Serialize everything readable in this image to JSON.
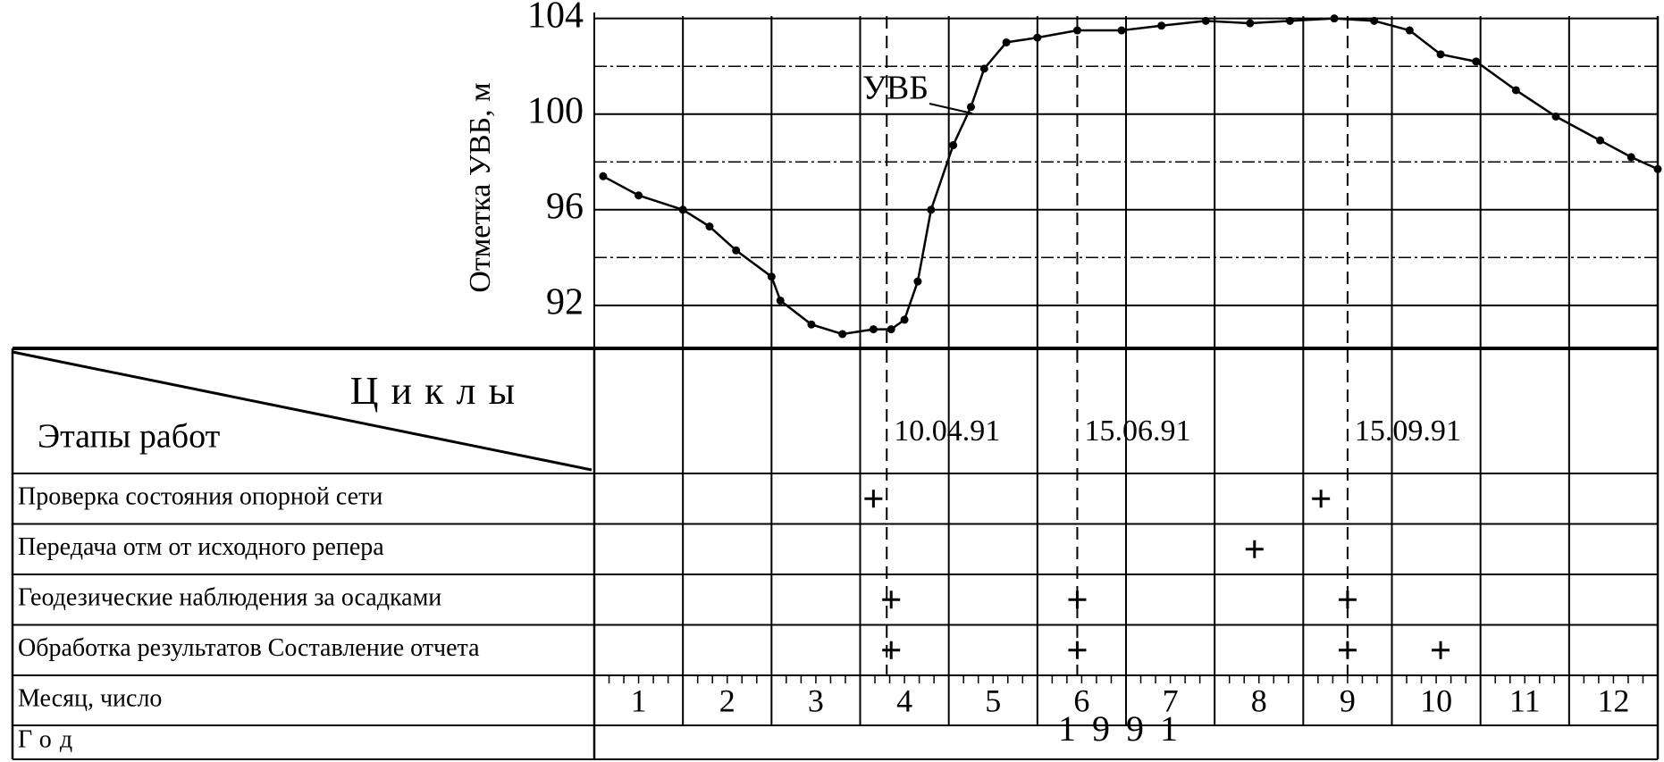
{
  "chart_data": {
    "type": "line",
    "y_label": "Отметка УВБ, м",
    "series": [
      {
        "name": "УВБ",
        "color": "#000000",
        "x": [
          0.1,
          0.5,
          1.0,
          1.3,
          1.6,
          2.0,
          2.1,
          2.45,
          2.8,
          3.15,
          3.35,
          3.5,
          3.65,
          3.8,
          4.05,
          4.25,
          4.4,
          4.65,
          5.0,
          5.45,
          5.95,
          6.4,
          6.9,
          7.4,
          7.85,
          8.35,
          8.8,
          9.2,
          9.55,
          9.95,
          10.4,
          10.85,
          11.35,
          11.7,
          12.0
        ],
        "values": [
          97.4,
          96.6,
          96.0,
          95.3,
          94.3,
          93.2,
          92.2,
          91.2,
          90.8,
          91.0,
          91.0,
          91.4,
          93.0,
          96.0,
          98.7,
          100.3,
          101.9,
          103.0,
          103.2,
          103.5,
          103.5,
          103.7,
          103.9,
          103.8,
          103.9,
          104.0,
          103.9,
          103.5,
          102.5,
          102.2,
          101.0,
          99.9,
          98.9,
          98.2,
          97.7
        ]
      }
    ],
    "xlim": [
      0,
      12
    ],
    "ylim": [
      90.2,
      104.1
    ],
    "yticks": [
      92,
      96,
      100,
      104
    ],
    "grid": true,
    "cycles": [
      {
        "x": 3.3,
        "label": "10.04.91"
      },
      {
        "x": 5.45,
        "label": "15.06.91"
      },
      {
        "x": 8.5,
        "label": "15.09.91"
      }
    ]
  },
  "table": {
    "header_columns": "Циклы",
    "header_rows": "Этапы работ",
    "rows": [
      {
        "label": "Проверка  состояния опорной сети",
        "marks": [
          3.15,
          8.2
        ]
      },
      {
        "label": "Передача отм  от исходного репера",
        "marks": [
          7.45
        ]
      },
      {
        "label": "Геодезические наблюдения за осадками",
        "marks": [
          3.35,
          5.45,
          8.5
        ]
      },
      {
        "label": "Обработка результатов  Составление отчета",
        "marks": [
          3.35,
          5.45,
          8.5,
          9.55
        ]
      }
    ],
    "month_label": "Месяц, число",
    "months": [
      "1",
      "2",
      "3",
      "4",
      "5",
      "6",
      "7",
      "8",
      "9",
      "10",
      "11",
      "12"
    ],
    "year_label": "Год",
    "year": "1991"
  }
}
